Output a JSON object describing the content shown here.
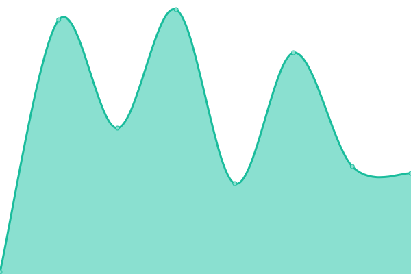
{
  "chart_data": {
    "type": "area",
    "x": [
      0,
      1,
      2,
      3,
      4,
      5,
      6,
      7
    ],
    "values": [
      3,
      371,
      213,
      386,
      132,
      323,
      157,
      147
    ],
    "ylim": [
      0,
      400
    ],
    "xlim": [
      0,
      7
    ],
    "grid": false,
    "axes_visible": false,
    "curve": "smooth",
    "colors": {
      "line": "#1abc9c",
      "fill": "#8ae0d0",
      "marker": "#8ae0d0"
    }
  }
}
